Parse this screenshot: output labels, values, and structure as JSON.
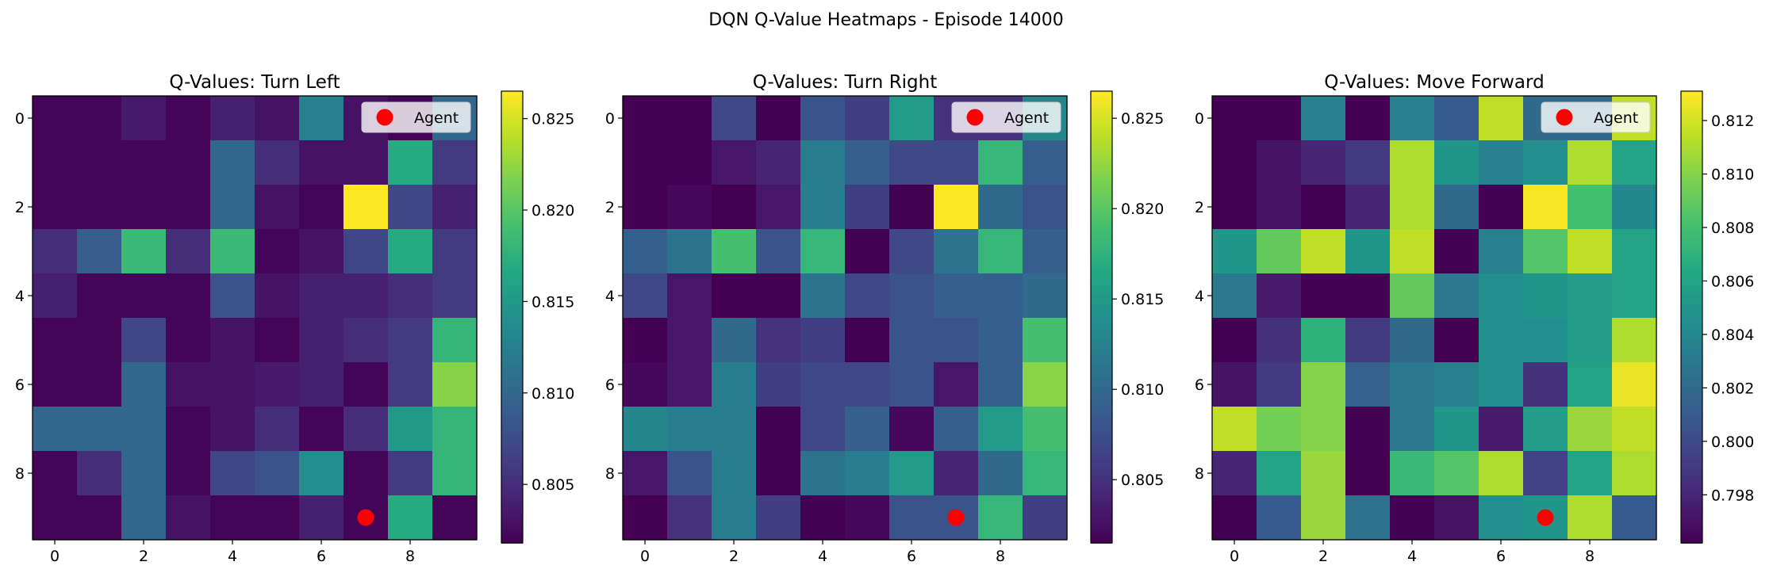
{
  "figure": {
    "title": "DQN Q-Value Heatmaps - Episode 14000"
  },
  "colors": {
    "agent": "#ff0000",
    "colormap": "viridis"
  },
  "chart_data": [
    {
      "type": "heatmap",
      "title": "Q-Values: Turn Left",
      "grid_size": 10,
      "xticks": [
        "0",
        "2",
        "4",
        "6",
        "8"
      ],
      "yticks": [
        "0",
        "2",
        "4",
        "6",
        "8"
      ],
      "clim": [
        0.8018,
        0.8265
      ],
      "colorbar_ticks": [
        "0.805",
        "0.810",
        "0.815",
        "0.820",
        "0.825"
      ],
      "colorbar_tick_values": [
        0.805,
        0.81,
        0.815,
        0.82,
        0.825
      ],
      "legend": [
        "Agent"
      ],
      "agent": {
        "x": 7,
        "y": 9
      },
      "values": [
        [
          0.802,
          0.802,
          0.8035,
          0.802,
          0.804,
          0.803,
          0.8125,
          0.803,
          0.802,
          0.81
        ],
        [
          0.802,
          0.802,
          0.802,
          0.802,
          0.81,
          0.805,
          0.803,
          0.803,
          0.817,
          0.806
        ],
        [
          0.802,
          0.802,
          0.802,
          0.802,
          0.81,
          0.803,
          0.802,
          0.8265,
          0.807,
          0.804
        ],
        [
          0.805,
          0.809,
          0.8185,
          0.805,
          0.8185,
          0.802,
          0.803,
          0.807,
          0.817,
          0.806
        ],
        [
          0.804,
          0.802,
          0.802,
          0.802,
          0.808,
          0.803,
          0.804,
          0.804,
          0.805,
          0.806
        ],
        [
          0.802,
          0.802,
          0.807,
          0.802,
          0.803,
          0.802,
          0.804,
          0.805,
          0.806,
          0.818
        ],
        [
          0.802,
          0.802,
          0.81,
          0.803,
          0.803,
          0.8035,
          0.804,
          0.802,
          0.806,
          0.822
        ],
        [
          0.81,
          0.81,
          0.81,
          0.802,
          0.803,
          0.805,
          0.802,
          0.805,
          0.815,
          0.818
        ],
        [
          0.802,
          0.805,
          0.81,
          0.802,
          0.807,
          0.808,
          0.814,
          0.802,
          0.806,
          0.818
        ],
        [
          0.802,
          0.802,
          0.81,
          0.803,
          0.802,
          0.802,
          0.804,
          0.802,
          0.817,
          0.802
        ]
      ]
    },
    {
      "type": "heatmap",
      "title": "Q-Values: Turn Right",
      "grid_size": 10,
      "xticks": [
        "0",
        "2",
        "4",
        "6",
        "8"
      ],
      "yticks": [
        "0",
        "2",
        "4",
        "6",
        "8"
      ],
      "clim": [
        0.8015,
        0.8265
      ],
      "colorbar_ticks": [
        "0.805",
        "0.810",
        "0.815",
        "0.820",
        "0.825"
      ],
      "colorbar_tick_values": [
        0.805,
        0.81,
        0.815,
        0.82,
        0.825
      ],
      "legend": [
        "Agent"
      ],
      "agent": {
        "x": 7,
        "y": 9
      },
      "values": [
        [
          0.8015,
          0.8015,
          0.807,
          0.8015,
          0.808,
          0.806,
          0.815,
          0.805,
          0.805,
          0.813
        ],
        [
          0.8015,
          0.8015,
          0.803,
          0.804,
          0.812,
          0.809,
          0.807,
          0.807,
          0.818,
          0.809
        ],
        [
          0.8015,
          0.802,
          0.8015,
          0.803,
          0.812,
          0.806,
          0.8015,
          0.8265,
          0.81,
          0.808
        ],
        [
          0.809,
          0.811,
          0.819,
          0.808,
          0.818,
          0.8015,
          0.807,
          0.811,
          0.818,
          0.809
        ],
        [
          0.807,
          0.803,
          0.8015,
          0.8015,
          0.811,
          0.807,
          0.808,
          0.809,
          0.809,
          0.81
        ],
        [
          0.8015,
          0.803,
          0.81,
          0.805,
          0.806,
          0.8015,
          0.808,
          0.808,
          0.809,
          0.819
        ],
        [
          0.802,
          0.803,
          0.812,
          0.806,
          0.807,
          0.807,
          0.808,
          0.803,
          0.809,
          0.822
        ],
        [
          0.813,
          0.812,
          0.812,
          0.8015,
          0.807,
          0.809,
          0.802,
          0.809,
          0.815,
          0.819
        ],
        [
          0.803,
          0.808,
          0.812,
          0.8015,
          0.811,
          0.812,
          0.815,
          0.804,
          0.81,
          0.818
        ],
        [
          0.8015,
          0.805,
          0.812,
          0.806,
          0.8015,
          0.802,
          0.808,
          0.808,
          0.818,
          0.806
        ]
      ]
    },
    {
      "type": "heatmap",
      "title": "Q-Values: Move Forward",
      "grid_size": 10,
      "xticks": [
        "0",
        "2",
        "4",
        "6",
        "8"
      ],
      "yticks": [
        "0",
        "2",
        "4",
        "6",
        "8"
      ],
      "clim": [
        0.7962,
        0.8131
      ],
      "colorbar_ticks": [
        "0.798",
        "0.800",
        "0.802",
        "0.804",
        "0.806",
        "0.808",
        "0.810",
        "0.812"
      ],
      "colorbar_tick_values": [
        0.798,
        0.8,
        0.802,
        0.804,
        0.806,
        0.808,
        0.81,
        0.812
      ],
      "legend": [
        "Agent"
      ],
      "agent": {
        "x": 7,
        "y": 9
      },
      "values": [
        [
          0.7962,
          0.7962,
          0.8035,
          0.7962,
          0.8035,
          0.801,
          0.8115,
          0.802,
          0.802,
          0.8115
        ],
        [
          0.7962,
          0.797,
          0.798,
          0.799,
          0.811,
          0.805,
          0.8035,
          0.8045,
          0.811,
          0.806
        ],
        [
          0.7962,
          0.797,
          0.7962,
          0.798,
          0.811,
          0.802,
          0.7962,
          0.813,
          0.808,
          0.804
        ],
        [
          0.805,
          0.809,
          0.8115,
          0.805,
          0.8115,
          0.7962,
          0.8035,
          0.8085,
          0.8115,
          0.806
        ],
        [
          0.803,
          0.7975,
          0.7962,
          0.7962,
          0.809,
          0.803,
          0.8045,
          0.805,
          0.8055,
          0.806
        ],
        [
          0.7962,
          0.7985,
          0.807,
          0.799,
          0.802,
          0.7962,
          0.8045,
          0.8045,
          0.8055,
          0.811
        ],
        [
          0.797,
          0.799,
          0.81,
          0.8015,
          0.803,
          0.8035,
          0.8045,
          0.7985,
          0.806,
          0.8125
        ],
        [
          0.8115,
          0.8095,
          0.81,
          0.7962,
          0.803,
          0.805,
          0.7975,
          0.8055,
          0.8105,
          0.8115
        ],
        [
          0.798,
          0.806,
          0.8105,
          0.7962,
          0.8075,
          0.8085,
          0.811,
          0.7995,
          0.806,
          0.811
        ],
        [
          0.7962,
          0.801,
          0.8105,
          0.8025,
          0.7962,
          0.797,
          0.8045,
          0.805,
          0.811,
          0.801
        ]
      ]
    }
  ]
}
